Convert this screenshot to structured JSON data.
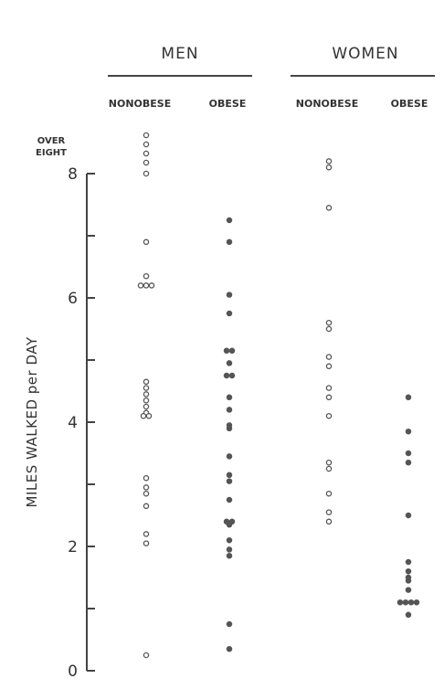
{
  "chart_data": {
    "type": "scatter",
    "title": "",
    "xlabel": "",
    "ylabel": "MILES WALKED per DAY",
    "ylim": [
      0,
      8
    ],
    "y_ticks": [
      "0",
      "2",
      "4",
      "6",
      "8"
    ],
    "overflow_label_line1": "OVER",
    "overflow_label_line2": "EIGHT",
    "groups": [
      {
        "name": "MEN",
        "subgroups": [
          "NONOBESE",
          "OBESE"
        ]
      },
      {
        "name": "WOMEN",
        "subgroups": [
          "NONOBESE",
          "OBESE"
        ]
      }
    ],
    "series": [
      {
        "name": "NONOBESE",
        "group": "MEN",
        "marker": "open",
        "over_eight": 4,
        "values": [
          8.0,
          6.9,
          6.35,
          6.2,
          6.2,
          6.2,
          4.65,
          4.55,
          4.45,
          4.35,
          4.25,
          4.15,
          4.1,
          4.1,
          3.1,
          2.95,
          2.85,
          2.65,
          2.2,
          2.05,
          0.25
        ]
      },
      {
        "name": "OBESE",
        "group": "MEN",
        "marker": "filled",
        "over_eight": 0,
        "values": [
          7.25,
          6.9,
          6.05,
          5.75,
          5.15,
          5.15,
          4.95,
          4.75,
          4.75,
          4.4,
          4.2,
          3.95,
          3.9,
          3.45,
          3.15,
          3.05,
          2.75,
          2.4,
          2.4,
          2.35,
          2.1,
          1.95,
          1.85,
          0.75,
          0.35
        ]
      },
      {
        "name": "NONOBESE",
        "group": "WOMEN",
        "marker": "open",
        "over_eight": 0,
        "values": [
          8.2,
          8.1,
          7.45,
          5.6,
          5.5,
          5.05,
          4.9,
          4.55,
          4.4,
          4.1,
          3.35,
          3.25,
          2.85,
          2.55,
          2.4
        ]
      },
      {
        "name": "OBESE",
        "group": "WOMEN",
        "marker": "filled",
        "over_eight": 0,
        "values": [
          4.4,
          3.85,
          3.5,
          3.35,
          2.5,
          1.75,
          1.6,
          1.5,
          1.45,
          1.3,
          1.1,
          1.1,
          1.1,
          1.1,
          0.9
        ]
      }
    ],
    "grid": false,
    "legend": "none"
  }
}
